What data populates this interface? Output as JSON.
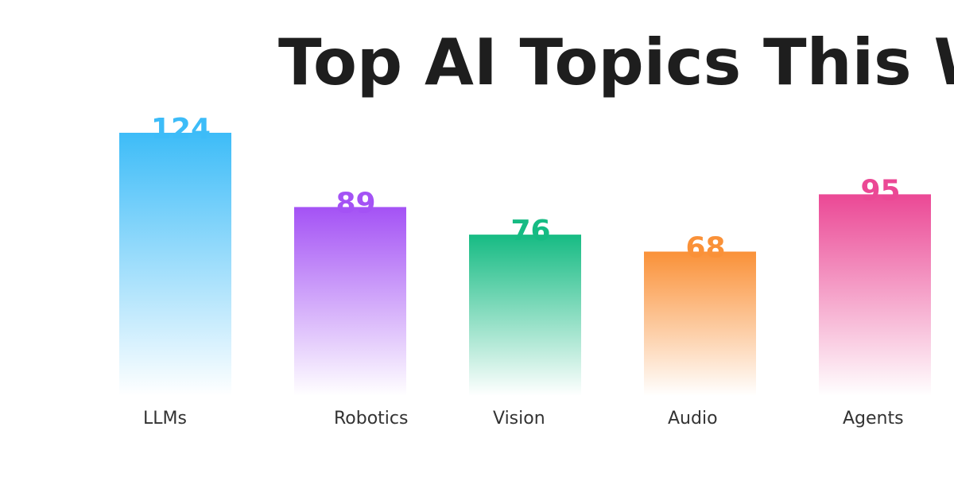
{
  "chart_data": {
    "type": "bar",
    "title": "Top AI Topics This W",
    "categories": [
      "LLMs",
      "Robotics",
      "Vision",
      "Audio",
      "Agents"
    ],
    "values": [
      124,
      89,
      76,
      68,
      95
    ],
    "colors": [
      "#3dbcf8",
      "#a452f5",
      "#16bb83",
      "#fa9138",
      "#eb4895"
    ],
    "ylim": [
      0,
      124
    ],
    "grid": false,
    "legend": "none",
    "xlabel": "",
    "ylabel": ""
  }
}
